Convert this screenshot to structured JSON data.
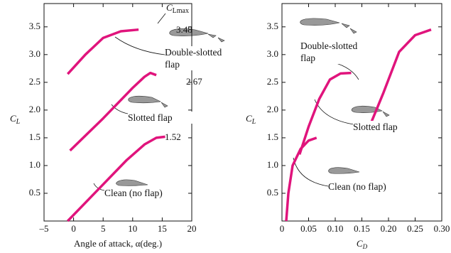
{
  "chart_data": [
    {
      "type": "line",
      "xlabel": "Angle of attack, α(deg.)",
      "ylabel": "C",
      "ylabel_sub": "L",
      "clmax_label": "C",
      "clmax_label_sub": "Lmax",
      "xlim": [
        -5,
        20
      ],
      "ylim": [
        0,
        3.92
      ],
      "xticks": [
        {
          "value": -5,
          "label": "–5"
        },
        0,
        5,
        10,
        15,
        20
      ],
      "yticks": [
        0.5,
        {
          "value": 1,
          "label": "1.0"
        },
        1.5,
        {
          "value": 2,
          "label": "2.0"
        },
        2.5,
        {
          "value": 3,
          "label": "3.0"
        },
        3.5
      ],
      "series": [
        {
          "name": "Clean (no flap)",
          "color": "#e0147c",
          "cl_max": 1.52,
          "x": [
            -1,
            4,
            9,
            12,
            14,
            15.5
          ],
          "values": [
            0,
            0.55,
            1.1,
            1.38,
            1.5,
            1.52
          ]
        },
        {
          "name": "Slotted flap",
          "color": "#e0147c",
          "cl_max": 2.67,
          "x": [
            -0.6,
            5,
            10,
            12,
            13,
            14
          ],
          "values": [
            1.27,
            1.85,
            2.4,
            2.6,
            2.67,
            2.63
          ]
        },
        {
          "name": "Double-slotted flap",
          "color": "#e0147c",
          "cl_max": 3.48,
          "x": [
            -1,
            2,
            5,
            8,
            11
          ],
          "values": [
            2.65,
            3.0,
            3.3,
            3.42,
            3.45
          ]
        }
      ]
    },
    {
      "type": "line",
      "xlabel": "C",
      "xlabel_sub": "D",
      "ylabel": "C",
      "ylabel_sub": "L",
      "xlim": [
        0,
        0.3
      ],
      "ylim": [
        0,
        3.92
      ],
      "xticks": [
        0,
        0.05,
        {
          "value": 0.1,
          "label": "0.10"
        },
        0.15,
        {
          "value": 0.2,
          "label": "0.20"
        },
        0.25,
        {
          "value": 0.3,
          "label": "0.30"
        }
      ],
      "yticks": [
        0.5,
        {
          "value": 1,
          "label": "1.0"
        },
        1.5,
        {
          "value": 2,
          "label": "2.0"
        },
        2.5,
        {
          "value": 3,
          "label": "3.0"
        },
        3.5
      ],
      "series": [
        {
          "name": "Clean (no flap)",
          "color": "#e0147c",
          "x": [
            0.008,
            0.012,
            0.02,
            0.035,
            0.05,
            0.065
          ],
          "values": [
            0,
            0.5,
            1.0,
            1.3,
            1.45,
            1.5
          ]
        },
        {
          "name": "Slotted flap",
          "color": "#e0147c",
          "x": [
            0.033,
            0.05,
            0.07,
            0.09,
            0.11,
            0.13
          ],
          "values": [
            1.2,
            1.7,
            2.2,
            2.55,
            2.66,
            2.67
          ]
        },
        {
          "name": "Double-slotted flap",
          "color": "#e0147c",
          "x": [
            0.16,
            0.19,
            0.22,
            0.25,
            0.28
          ],
          "values": [
            1.6,
            2.3,
            3.05,
            3.35,
            3.45
          ]
        }
      ]
    }
  ]
}
